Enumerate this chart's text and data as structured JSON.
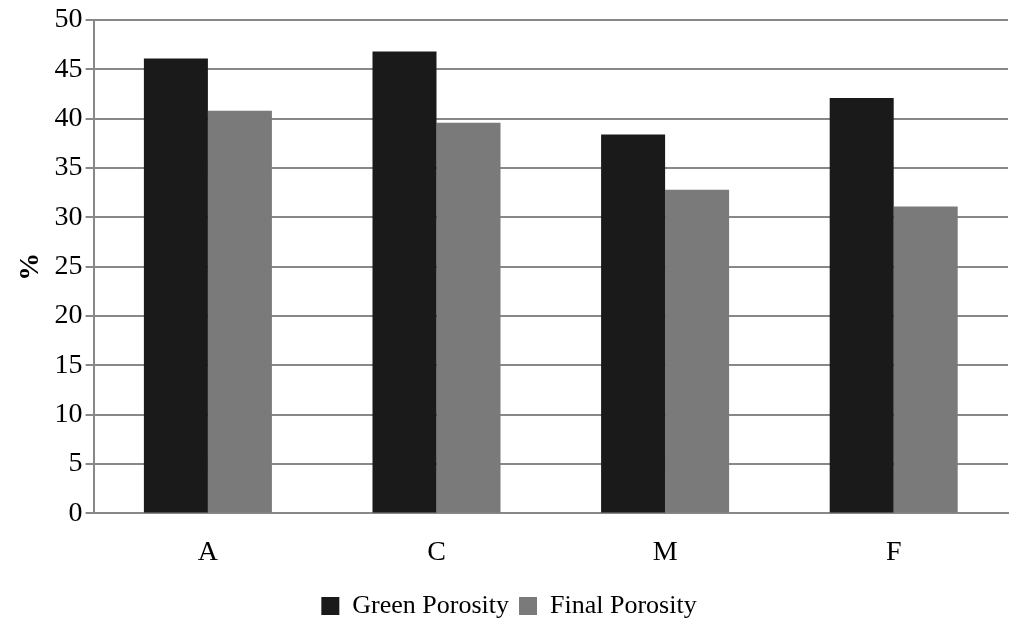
{
  "chart_data": {
    "type": "bar",
    "ylabel": "%",
    "categories": [
      "A",
      "C",
      "M",
      "F"
    ],
    "series": [
      {
        "name": "Green Porosity",
        "color": "#1a1a1a",
        "values": [
          46.1,
          46.8,
          38.4,
          42.1
        ]
      },
      {
        "name": "Final Porosity",
        "color": "#7a7a7a",
        "values": [
          40.8,
          39.6,
          32.8,
          31.1
        ]
      }
    ],
    "ylim": [
      0,
      50
    ],
    "yticks": [
      0,
      5,
      10,
      15,
      20,
      25,
      30,
      35,
      40,
      45,
      50
    ],
    "grid": "y",
    "legend": "bottom"
  }
}
